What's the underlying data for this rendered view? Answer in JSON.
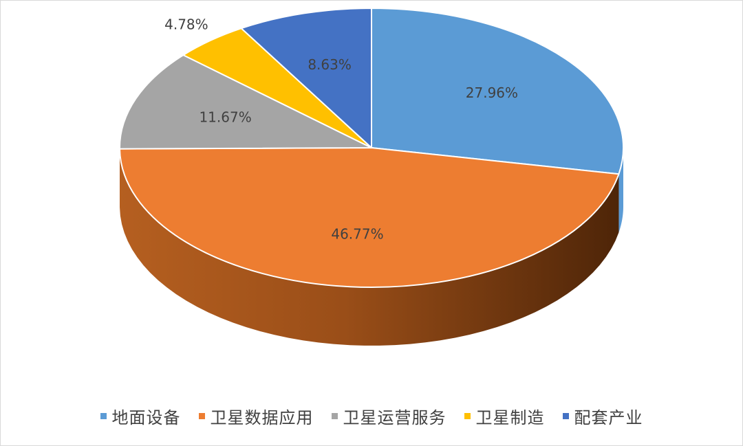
{
  "chart_data": {
    "type": "pie",
    "title": "",
    "slices": [
      {
        "label": "地面设备",
        "value": 27.96,
        "display": "27.96%",
        "color": "#5b9bd5"
      },
      {
        "label": "卫星数据应用",
        "value": 46.77,
        "display": "46.77%",
        "color": "#ed7d31"
      },
      {
        "label": "卫星运营服务",
        "value": 11.67,
        "display": "11.67%",
        "color": "#a5a5a5"
      },
      {
        "label": "卫星制造",
        "value": 4.78,
        "display": "4.78%",
        "color": "#ffc000"
      },
      {
        "label": "配套产业",
        "value": 8.63,
        "display": "8.63%",
        "color": "#4472c4"
      }
    ],
    "style": "3d",
    "legend_position": "bottom",
    "data_label_color": "#404040"
  }
}
